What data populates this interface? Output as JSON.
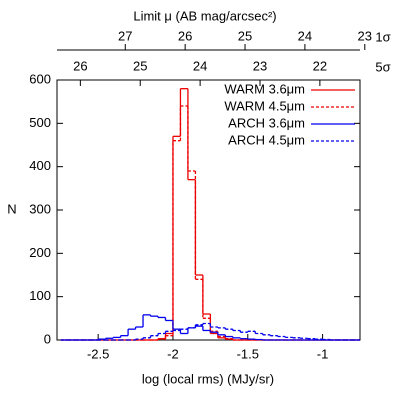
{
  "chart_data": {
    "type": "histogram",
    "xlabel": "log (local rms) (MJy/sr)",
    "ylabel": "N",
    "x2label": "Limit μ (AB mag/arcsec²)",
    "x2name": "1σ",
    "x3name": "5σ",
    "xlim": [
      -2.775,
      -0.75
    ],
    "xticks": [
      -2.5,
      -2,
      -1.5,
      -1
    ],
    "ylim": [
      0,
      600
    ],
    "yticks": [
      0,
      100,
      200,
      300,
      400,
      500,
      600
    ],
    "x2lim": [
      28.14,
      23.08
    ],
    "x2ticks": [
      27,
      26,
      25,
      24,
      23
    ],
    "x3lim": [
      26.39,
      21.33
    ],
    "x3ticks": [
      26,
      25,
      24,
      23,
      22
    ],
    "legend": "upper right",
    "bins": [
      -2.75,
      -2.7,
      -2.65,
      -2.6,
      -2.55,
      -2.5,
      -2.45,
      -2.4,
      -2.35,
      -2.3,
      -2.25,
      -2.2,
      -2.15,
      -2.1,
      -2.05,
      -2.0,
      -1.95,
      -1.9,
      -1.85,
      -1.8,
      -1.75,
      -1.7,
      -1.65,
      -1.6,
      -1.55,
      -1.5,
      -1.45,
      -1.4,
      -1.35,
      -1.3,
      -1.25,
      -1.2,
      -1.15,
      -1.1,
      -1.05,
      -1.0,
      -0.95,
      -0.9,
      -0.85,
      -0.8,
      -0.75
    ],
    "series": [
      {
        "name": "WARM 3.6μm",
        "color": "#ee0000",
        "dashed": false,
        "values": [
          0,
          0,
          0,
          0,
          0,
          0,
          0,
          0,
          0,
          0,
          0,
          0,
          0,
          3,
          15,
          470,
          580,
          370,
          150,
          60,
          15,
          5,
          2,
          0,
          0,
          0,
          0,
          0,
          0,
          0,
          0,
          0,
          0,
          0,
          0,
          0,
          0,
          0,
          0,
          0
        ]
      },
      {
        "name": "WARM 4.5μm",
        "color": "#ee0000",
        "dashed": true,
        "values": [
          0,
          0,
          0,
          0,
          0,
          0,
          0,
          0,
          0,
          0,
          0,
          0,
          0,
          2,
          10,
          460,
          540,
          390,
          140,
          50,
          20,
          8,
          3,
          0,
          0,
          0,
          0,
          0,
          0,
          0,
          0,
          0,
          0,
          0,
          0,
          0,
          0,
          0,
          0,
          0
        ]
      },
      {
        "name": "ARCH 3.6μm",
        "color": "#0000ee",
        "dashed": false,
        "values": [
          0,
          0,
          0,
          0,
          0,
          2,
          4,
          6,
          10,
          25,
          30,
          58,
          55,
          52,
          45,
          25,
          15,
          28,
          32,
          22,
          18,
          12,
          8,
          5,
          3,
          2,
          1,
          0,
          0,
          0,
          0,
          0,
          0,
          0,
          0,
          0,
          0,
          0,
          0,
          0
        ]
      },
      {
        "name": "ARCH 4.5μm",
        "color": "#0000ee",
        "dashed": true,
        "values": [
          0,
          0,
          0,
          0,
          0,
          0,
          0,
          0,
          0,
          0,
          2,
          5,
          10,
          15,
          20,
          22,
          25,
          28,
          35,
          38,
          30,
          28,
          25,
          22,
          18,
          20,
          15,
          12,
          10,
          8,
          6,
          5,
          4,
          3,
          2,
          1,
          0,
          0,
          0,
          0
        ]
      }
    ]
  }
}
